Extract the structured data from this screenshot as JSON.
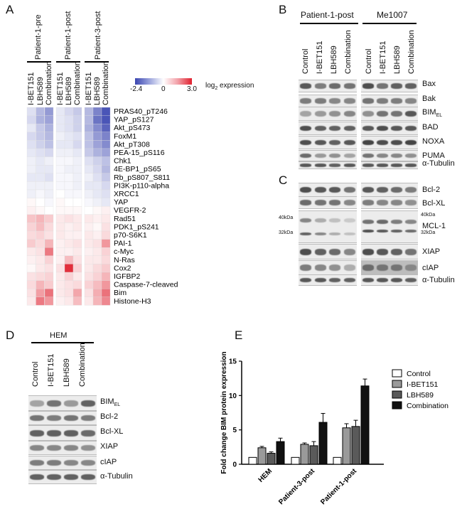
{
  "panels": {
    "a": "A",
    "b": "B",
    "c": "C",
    "d": "D",
    "e": "E"
  },
  "heatmap": {
    "groups": [
      "Patient-1-pre",
      "Patient-1-post",
      "Patient-3-post"
    ],
    "treatments": [
      "I-BET151",
      "LBH589",
      "Combination"
    ],
    "legend": {
      "min": "-2.4",
      "mid": "0",
      "max": "3.0",
      "label": "log",
      "sub": "2",
      "suffix": " expression"
    },
    "rows": [
      "PRAS40_pT246",
      "YAP_pS127",
      "Akt_pS473",
      "FoxM1",
      "Akt_pT308",
      "PEA-15_pS116",
      "Chk1",
      "4E-BP1_pS65",
      "Rb_pS807_S811",
      "PI3K-p110-alpha",
      "XRCC1",
      "YAP",
      "VEGFR-2",
      "Rad51",
      "PDK1_pS241",
      "p70-S6K1",
      "PAI-1",
      "c-Myc",
      "N-Ras",
      "Cox2",
      "IGFBP2",
      "Caspase-7-cleaved",
      "Bim",
      "Histone-H3"
    ],
    "values": [
      [
        -0.4,
        -0.9,
        -1.3,
        -0.3,
        -0.5,
        -0.7,
        -0.9,
        -1.6,
        -2.2
      ],
      [
        -0.5,
        -1.0,
        -1.2,
        -0.3,
        -0.4,
        -0.6,
        -0.9,
        -1.8,
        -2.2
      ],
      [
        -0.3,
        -0.7,
        -1.0,
        -0.3,
        -0.4,
        -0.6,
        -1.0,
        -1.5,
        -2.0
      ],
      [
        -0.5,
        -0.7,
        -0.9,
        -0.2,
        -0.3,
        -0.4,
        -0.8,
        -1.3,
        -1.6
      ],
      [
        -0.4,
        -0.6,
        -0.8,
        -0.3,
        -0.3,
        -0.5,
        -0.8,
        -1.2,
        -1.5
      ],
      [
        -0.3,
        -0.4,
        -0.5,
        -0.2,
        -0.2,
        -0.3,
        -0.7,
        -1.0,
        -1.2
      ],
      [
        -0.2,
        -0.3,
        -0.2,
        -0.1,
        -0.1,
        -0.2,
        -0.4,
        -0.6,
        -0.8
      ],
      [
        -0.2,
        -0.3,
        -0.3,
        -0.1,
        -0.2,
        -0.2,
        -0.3,
        -0.5,
        -0.9
      ],
      [
        -0.3,
        -0.3,
        -0.4,
        -0.1,
        -0.1,
        -0.2,
        -0.2,
        -0.4,
        -0.7
      ],
      [
        -0.2,
        -0.2,
        -0.2,
        -0.1,
        -0.1,
        -0.2,
        -0.3,
        -0.3,
        -0.5
      ],
      [
        -0.2,
        -0.1,
        -0.2,
        0.0,
        -0.1,
        -0.1,
        -0.2,
        -0.3,
        -0.4
      ],
      [
        0.1,
        0.0,
        -0.1,
        0.1,
        0.0,
        0.0,
        -0.1,
        -0.2,
        -0.3
      ],
      [
        0.2,
        0.1,
        0.0,
        0.1,
        0.1,
        0.1,
        0.0,
        0.1,
        0.2
      ],
      [
        0.8,
        1.0,
        0.7,
        0.3,
        0.4,
        0.3,
        0.3,
        0.2,
        0.3
      ],
      [
        0.6,
        0.9,
        0.5,
        0.3,
        0.2,
        0.3,
        0.2,
        0.1,
        0.4
      ],
      [
        0.5,
        0.6,
        0.4,
        0.3,
        0.2,
        0.2,
        0.3,
        0.2,
        0.5
      ],
      [
        0.7,
        0.5,
        1.0,
        0.2,
        0.3,
        0.4,
        0.3,
        0.4,
        1.4
      ],
      [
        0.3,
        0.4,
        1.8,
        0.2,
        0.2,
        0.3,
        0.2,
        0.3,
        0.6
      ],
      [
        0.2,
        0.3,
        0.6,
        0.2,
        0.9,
        0.4,
        0.3,
        0.3,
        0.5
      ],
      [
        0.1,
        0.3,
        0.4,
        0.4,
        2.8,
        0.6,
        0.3,
        0.5,
        0.7
      ],
      [
        0.4,
        0.5,
        0.6,
        0.3,
        0.6,
        0.3,
        0.4,
        0.6,
        1.0
      ],
      [
        0.5,
        1.0,
        0.7,
        0.3,
        0.4,
        0.5,
        0.6,
        0.9,
        1.4
      ],
      [
        0.4,
        1.3,
        1.9,
        0.3,
        0.4,
        1.2,
        0.4,
        1.1,
        1.9
      ],
      [
        0.3,
        1.8,
        1.4,
        0.2,
        0.3,
        0.9,
        0.3,
        1.0,
        1.6
      ]
    ]
  },
  "blotB": {
    "groups": [
      "Patient-1-post",
      "Me1007"
    ],
    "lanes": [
      "Control",
      "I-BET151",
      "LBH589",
      "Combination"
    ],
    "proteins": [
      "Bax",
      "Bak",
      "BIM",
      "BAD",
      "NOXA",
      "PUMA",
      "α-Tubulin"
    ],
    "bim_sub": "EL"
  },
  "blotC": {
    "proteins": [
      "Bcl-2",
      "Bcl-XL",
      "MCL-1",
      "XIAP",
      "cIAP",
      "α-Tubulin"
    ],
    "mw_top": "40kDa",
    "mw_bottom": "32kDa"
  },
  "blotD": {
    "group": "HEM",
    "lanes": [
      "Control",
      "I-BET151",
      "LBH589",
      "Combination"
    ],
    "proteins": [
      "BIM",
      "Bcl-2",
      "Bcl-XL",
      "XIAP",
      "cIAP",
      "α-Tubulin"
    ],
    "bim_sub": "EL"
  },
  "chart_data": {
    "type": "bar",
    "title": "",
    "ylabel": "Fold change BIM protein expression",
    "xlabel": "",
    "ylim": [
      0,
      15
    ],
    "yticks": [
      0,
      5,
      10,
      15
    ],
    "categories": [
      "HEM",
      "Patient-3-post",
      "Patient-1-post"
    ],
    "series": [
      {
        "name": "Control",
        "color": "#ffffff",
        "values": [
          1.0,
          1.0,
          1.0
        ],
        "errors": [
          0,
          0,
          0
        ]
      },
      {
        "name": "I-BET151",
        "color": "#9a9a9a",
        "values": [
          2.4,
          2.9,
          5.3
        ],
        "errors": [
          0.2,
          0.2,
          0.6
        ]
      },
      {
        "name": "LBH589",
        "color": "#5a5a5a",
        "values": [
          1.6,
          2.7,
          5.5
        ],
        "errors": [
          0.2,
          0.6,
          0.9
        ]
      },
      {
        "name": "Combination",
        "color": "#111111",
        "values": [
          3.3,
          6.1,
          11.4
        ],
        "errors": [
          0.5,
          1.3,
          1.0
        ]
      }
    ]
  }
}
